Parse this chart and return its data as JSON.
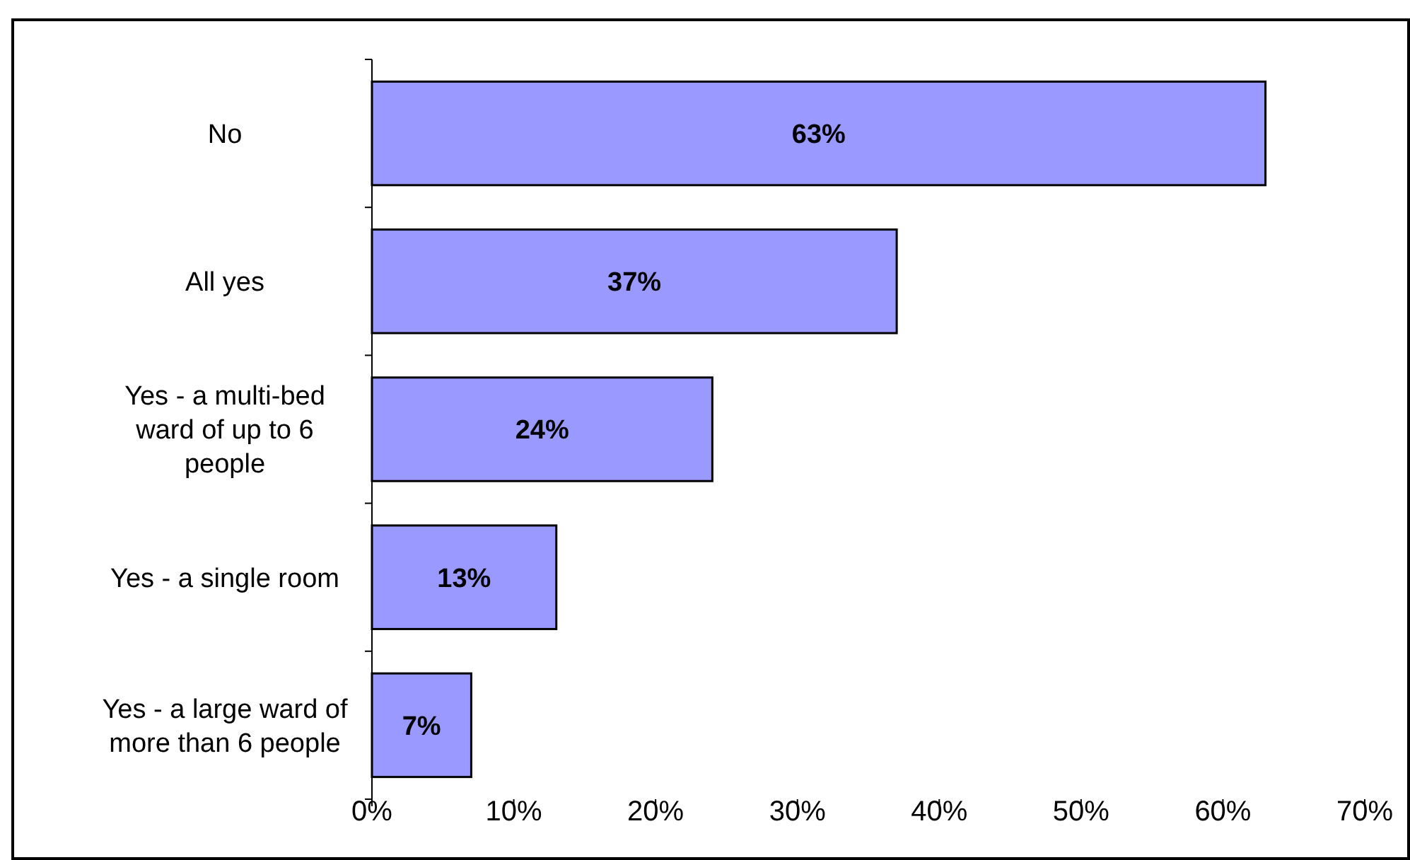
{
  "chart_data": {
    "type": "bar",
    "orientation": "horizontal",
    "categories": [
      "No",
      "All yes",
      "Yes - a multi-bed ward of up to 6 people",
      "Yes - a single room",
      "Yes - a large ward of more than 6 people"
    ],
    "values": [
      63,
      37,
      24,
      13,
      7
    ],
    "color": "#9999ff",
    "xlim": [
      0,
      70
    ],
    "xticks": [
      {
        "value": 0,
        "label": "0%"
      },
      {
        "value": 10,
        "label": "10%"
      },
      {
        "value": 20,
        "label": "20%"
      },
      {
        "value": 30,
        "label": "30%"
      },
      {
        "value": 40,
        "label": "40%"
      },
      {
        "value": 50,
        "label": "50%"
      },
      {
        "value": 60,
        "label": "60%"
      },
      {
        "value": 70,
        "label": "70%"
      }
    ],
    "value_labels": [
      "63%",
      "37%",
      "24%",
      "13%",
      "7%"
    ]
  }
}
